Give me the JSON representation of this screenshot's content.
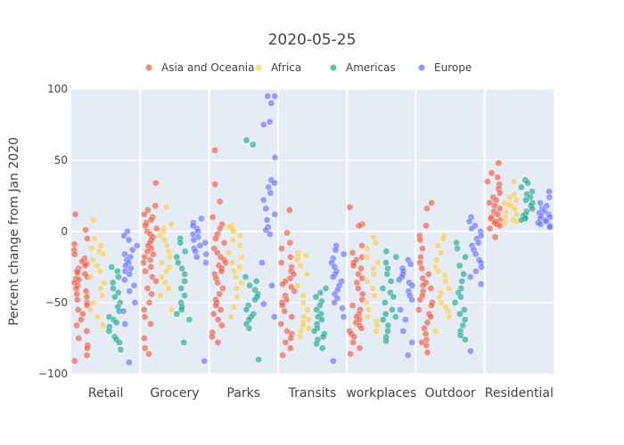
{
  "chart_data": {
    "type": "strip",
    "title": "2020-05-25",
    "xlabel": "",
    "ylabel": "Percent change from Jan 2020",
    "ylim": [
      -100,
      100
    ],
    "yticks": [
      -100,
      -50,
      0,
      50,
      100
    ],
    "grid": true,
    "legend_position": "top",
    "categories": [
      "Retail",
      "Grocery",
      "Parks",
      "Transits",
      "workplaces",
      "Outdoor",
      "Residential"
    ],
    "series": [
      {
        "name": "Asia and Oceania",
        "color": "#EF553B",
        "values": [
          [
            12,
            1,
            -5,
            -9,
            -13,
            -16,
            -19,
            -21,
            -23,
            -24,
            -26,
            -28,
            -29,
            -30,
            -32,
            -33,
            -34,
            -36,
            -38,
            -40,
            -42,
            -44,
            -46,
            -48,
            -50,
            -52,
            -55,
            -58,
            -62,
            -66,
            -70,
            -75,
            -80,
            -82,
            -87,
            -91
          ],
          [
            34,
            18,
            15,
            12,
            10,
            8,
            6,
            4,
            2,
            0,
            -2,
            -4,
            -6,
            -8,
            -10,
            -12,
            -14,
            -16,
            -18,
            -20,
            -22,
            -25,
            -28,
            -32,
            -35,
            -40,
            -44,
            -50,
            -55,
            -60,
            -65,
            -75,
            -82,
            -86
          ],
          [
            57,
            33,
            21,
            10,
            5,
            2,
            -2,
            -5,
            -8,
            -12,
            -15,
            -18,
            -20,
            -22,
            -24,
            -26,
            -28,
            -30,
            -33,
            -36,
            -40,
            -44,
            -48,
            -50,
            -52,
            -55,
            -58,
            -62,
            -66,
            -71,
            -74,
            -78
          ],
          [
            15,
            -1,
            -8,
            -12,
            -18,
            -22,
            -25,
            -28,
            -30,
            -33,
            -35,
            -37,
            -39,
            -42,
            -45,
            -48,
            -50,
            -52,
            -56,
            -60,
            -65,
            -70,
            -72,
            -75,
            -78,
            -82,
            -87
          ],
          [
            17,
            5,
            4,
            -10,
            -15,
            -18,
            -20,
            -22,
            -24,
            -26,
            -30,
            -33,
            -36,
            -40,
            -44,
            -48,
            -52,
            -55,
            -58,
            -60,
            -62,
            -64,
            -66,
            -68,
            -70,
            -72,
            -74,
            -78,
            -82,
            -86
          ],
          [
            20,
            16,
            4,
            -3,
            -6,
            -12,
            -18,
            -22,
            -26,
            -30,
            -33,
            -36,
            -38,
            -40,
            -42,
            -45,
            -48,
            -50,
            -52,
            -55,
            -58,
            -60,
            -64,
            -68,
            -72,
            -76,
            -78,
            -80,
            -85
          ],
          [
            48,
            41,
            38,
            35,
            33,
            30,
            27,
            24,
            22,
            20,
            18,
            16,
            14,
            12,
            10,
            9,
            8,
            7,
            6,
            5,
            4,
            2,
            -4
          ]
        ]
      },
      {
        "name": "Africa",
        "color": "#FECB52",
        "values": [
          [
            8,
            -5,
            -10,
            -12,
            -14,
            -16,
            -20,
            -24,
            -28,
            -32,
            -36,
            -40,
            -45,
            -50,
            -55,
            -60,
            -66
          ],
          [
            17,
            5,
            2,
            0,
            -3,
            -6,
            -10,
            -14,
            -18,
            -22,
            -25,
            -28,
            -32,
            -36,
            -40,
            -45,
            -55
          ],
          [
            4,
            3,
            2,
            0,
            -3,
            -6,
            -10,
            -15,
            -18,
            -22,
            -25,
            -28,
            -32,
            -36,
            -40,
            -46,
            -53,
            -60
          ],
          [
            -15,
            -17,
            -18,
            -20,
            -24,
            -30,
            -38,
            -45,
            -50,
            -55,
            -60,
            -62,
            -64,
            -66,
            -68,
            -70,
            -74
          ],
          [
            -4,
            -8,
            -12,
            -18,
            -22,
            -26,
            -30,
            -35,
            -40,
            -45,
            -50,
            -55,
            -60,
            -63,
            -66,
            -70
          ],
          [
            -3,
            -5,
            -10,
            -15,
            -20,
            -25,
            -28,
            -31,
            -35,
            -40,
            -43,
            -46,
            -50,
            -53,
            -56,
            -60,
            -70
          ],
          [
            35,
            26,
            24,
            22,
            20,
            19,
            18,
            16,
            14,
            12,
            10,
            8,
            7,
            6
          ]
        ]
      },
      {
        "name": "Americas",
        "color": "#1CA58C",
        "values": [
          [
            -25,
            -28,
            -32,
            -36,
            -40,
            -43,
            -46,
            -50,
            -53,
            -56,
            -60,
            -62,
            -64,
            -67,
            -70,
            -74,
            -76,
            -78,
            -83
          ],
          [
            -5,
            -8,
            -14,
            -18,
            -22,
            -26,
            -30,
            -35,
            -40,
            -45,
            -50,
            -53,
            -55,
            -58,
            -62,
            -78
          ],
          [
            64,
            61,
            -32,
            -35,
            -38,
            -41,
            -44,
            -46,
            -48,
            -52,
            -55,
            -58,
            -60,
            -62,
            -65,
            -68,
            -90
          ],
          [
            -40,
            -43,
            -46,
            -49,
            -52,
            -55,
            -58,
            -60,
            -62,
            -65,
            -68,
            -70,
            -72,
            -74,
            -76,
            -79,
            -82
          ],
          [
            -14,
            -18,
            -22,
            -26,
            -30,
            -35,
            -40,
            -43,
            -46,
            -50,
            -55,
            -58,
            -60,
            -62,
            -66,
            -70,
            -74,
            -77
          ],
          [
            -8,
            -12,
            -18,
            -24,
            -30,
            -35,
            -40,
            -43,
            -46,
            -50,
            -55,
            -58,
            -62,
            -66,
            -70,
            -73,
            -76
          ],
          [
            36,
            34,
            31,
            28,
            26,
            24,
            22,
            20,
            18,
            16,
            14,
            12,
            11,
            10,
            9,
            8
          ]
        ]
      },
      {
        "name": "Europe",
        "color": "#636EFA",
        "values": [
          [
            0,
            -3,
            -6,
            -10,
            -13,
            -16,
            -18,
            -20,
            -22,
            -24,
            -26,
            -28,
            -30,
            -34,
            -38,
            -42,
            -50,
            -56,
            -65,
            -92
          ],
          [
            9,
            6,
            4,
            2,
            0,
            -2,
            -4,
            -6,
            -8,
            -10,
            -12,
            -14,
            -16,
            -18,
            -22,
            -91
          ],
          [
            95,
            95,
            90,
            77,
            75,
            52,
            36,
            34,
            31,
            27,
            22,
            16,
            12,
            8,
            3,
            1,
            -2,
            -22,
            -38,
            -51,
            -60
          ],
          [
            -10,
            -13,
            -16,
            -19,
            -22,
            -25,
            -28,
            -30,
            -32,
            -35,
            -38,
            -41,
            -44,
            -47,
            -50,
            -54,
            -60,
            -91
          ],
          [
            -20,
            -23,
            -26,
            -28,
            -30,
            -32,
            -34,
            -36,
            -38,
            -42,
            -45,
            -48,
            -55,
            -62,
            -70,
            -78,
            -87
          ],
          [
            10,
            7,
            4,
            2,
            0,
            -3,
            -5,
            -8,
            -10,
            -13,
            -16,
            -20,
            -22,
            -25,
            -28,
            -32,
            -37,
            -84
          ],
          [
            28,
            24,
            20,
            18,
            16,
            14,
            13,
            12,
            11,
            10,
            9,
            8,
            7,
            6,
            5,
            4,
            3
          ]
        ]
      }
    ]
  }
}
